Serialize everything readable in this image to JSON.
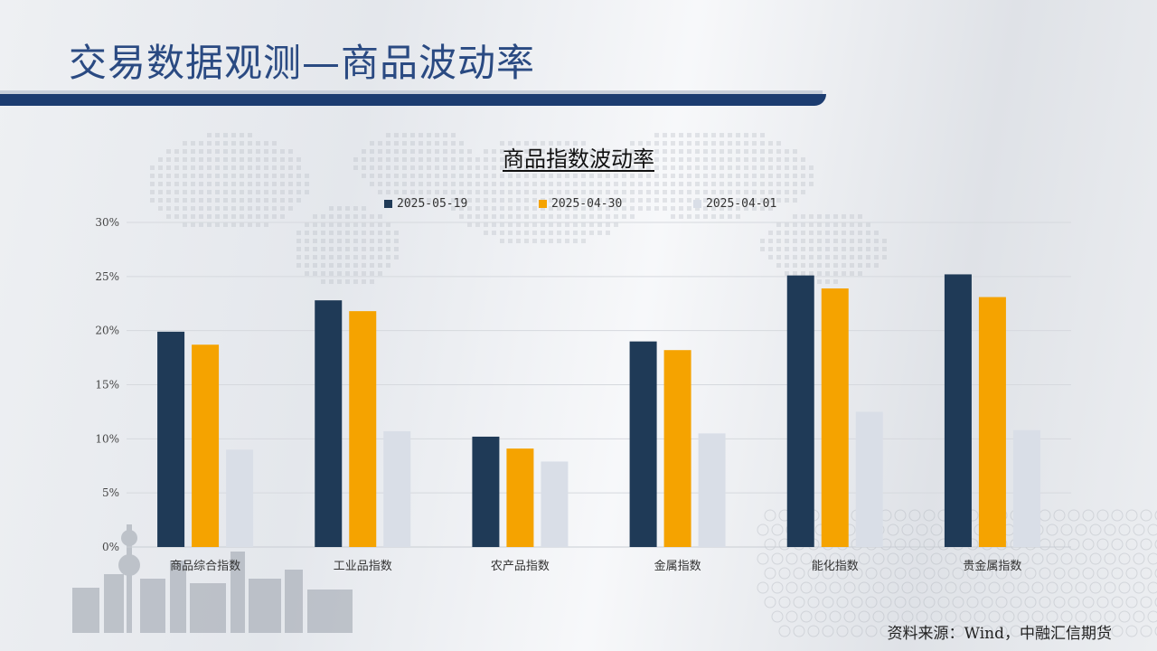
{
  "header": {
    "title": "交易数据观测—商品波动率"
  },
  "colors": {
    "series": [
      "#1f3a57",
      "#f5a300",
      "#d9dee7"
    ],
    "header_bar": "#1c3c70",
    "title": "#2a4a82"
  },
  "chart_data": {
    "type": "bar",
    "title": "商品指数波动率",
    "xlabel": "",
    "ylabel": "",
    "ylim": [
      0,
      30
    ],
    "y_ticks": [
      "0%",
      "5%",
      "10%",
      "15%",
      "20%",
      "25%",
      "30%"
    ],
    "categories": [
      "商品综合指数",
      "工业品指数",
      "农产品指数",
      "金属指数",
      "能化指数",
      "贵金属指数"
    ],
    "series": [
      {
        "name": "2025-05-19",
        "values": [
          19.9,
          22.8,
          10.2,
          19.0,
          25.1,
          25.2
        ]
      },
      {
        "name": "2025-04-30",
        "values": [
          18.7,
          21.8,
          9.1,
          18.2,
          23.9,
          23.1
        ]
      },
      {
        "name": "2025-04-01",
        "values": [
          9.0,
          10.7,
          7.9,
          10.5,
          12.5,
          10.8
        ]
      }
    ],
    "grid": true,
    "legend_position": "top"
  },
  "footer": {
    "source": "资料来源：Wind，中融汇信期货"
  }
}
